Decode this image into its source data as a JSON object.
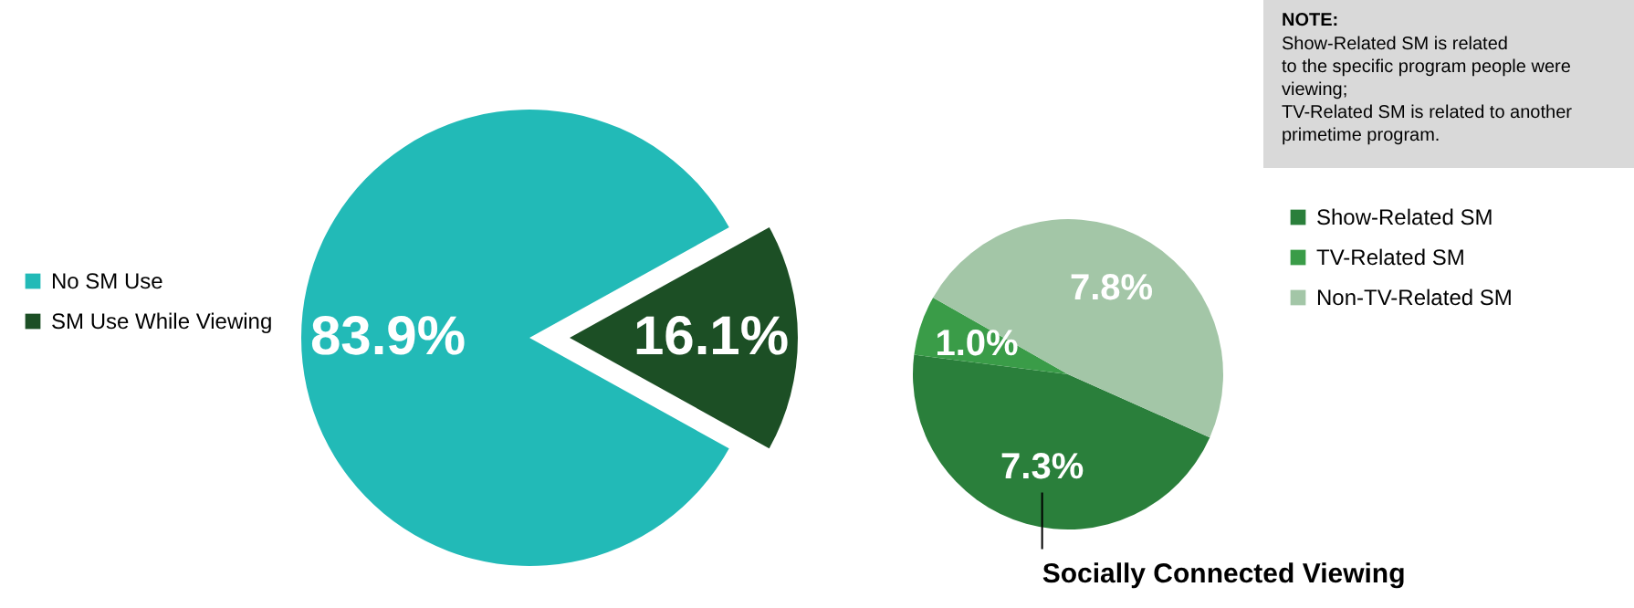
{
  "chart_data": [
    {
      "type": "pie",
      "categories": [
        "No SM Use",
        "SM Use While Viewing"
      ],
      "values": [
        83.9,
        16.1
      ],
      "colors": [
        "#22bab7",
        "#1c4f25"
      ],
      "value_labels": [
        "83.9%",
        "16.1%"
      ],
      "legend": "left"
    },
    {
      "type": "pie",
      "categories": [
        "Show-Related SM",
        "TV-Related SM",
        "Non-TV-Related SM"
      ],
      "values": [
        7.3,
        1.0,
        7.8
      ],
      "colors": [
        "#2a7f3b",
        "#3a9c48",
        "#a3c6a7"
      ],
      "value_labels": [
        "7.3%",
        "1.0%",
        "7.8%"
      ],
      "legend": "right",
      "annotations": [
        "NOTE:\nShow-Related SM is related\nto the specific program people were\nviewing;\nTV-Related SM is related to another\nprimetime program.",
        {
          "text": "Socially Connected Viewing",
          "x": "Show-Related SM"
        }
      ]
    }
  ]
}
